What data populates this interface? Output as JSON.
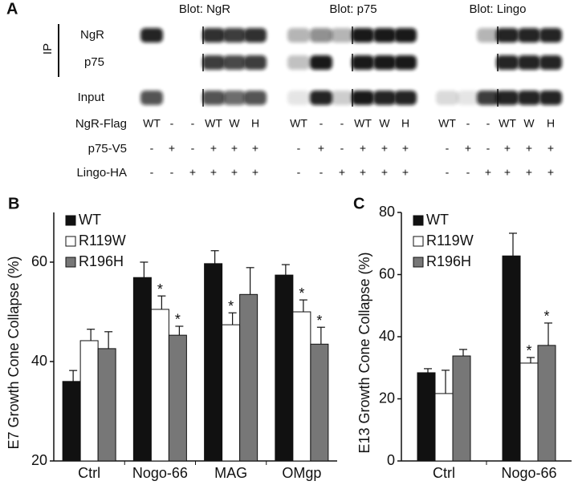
{
  "panel_a": {
    "label": "A",
    "blot_titles": [
      "Blot: NgR",
      "Blot: p75",
      "Blot: Lingo"
    ],
    "ip_label": "IP",
    "row_labels": [
      "NgR",
      "p75",
      "Input"
    ],
    "condition_labels": [
      "NgR-Flag",
      "p75-V5",
      "Lingo-HA"
    ],
    "lanes": [
      [
        "WT",
        "-",
        "-",
        "WT",
        "W",
        "H"
      ],
      [
        "-",
        "+",
        "-",
        "+",
        "+",
        "+"
      ],
      [
        "-",
        "-",
        "+",
        "+",
        "+",
        "+"
      ]
    ]
  },
  "chart_data": [
    {
      "type": "bar",
      "panel": "B",
      "y_label": "E7 Growth Cone Collapse (%)",
      "categories": [
        "Ctrl",
        "Nogo-66",
        "MAG",
        "OMgp"
      ],
      "series": [
        {
          "name": "WT",
          "color": "#111111",
          "values": [
            36.0,
            56.9,
            59.7,
            57.4
          ],
          "errors": [
            2.2,
            3.1,
            2.6,
            2.1
          ]
        },
        {
          "name": "R119W",
          "color": "#ffffff",
          "values": [
            44.2,
            50.5,
            47.4,
            50.0
          ],
          "errors": [
            2.3,
            2.7,
            2.4,
            2.4
          ]
        },
        {
          "name": "R196H",
          "color": "#777777",
          "values": [
            42.6,
            45.3,
            53.5,
            43.5
          ],
          "errors": [
            3.4,
            1.8,
            5.4,
            3.4
          ]
        }
      ],
      "annotations": [
        {
          "text": "*",
          "category": "Nogo-66",
          "series": "R119W"
        },
        {
          "text": "*",
          "category": "Nogo-66",
          "series": "R196H"
        },
        {
          "text": "*",
          "category": "MAG",
          "series": "R119W"
        },
        {
          "text": "*",
          "category": "OMgp",
          "series": "R119W"
        },
        {
          "text": "*",
          "category": "OMgp",
          "series": "R196H"
        }
      ],
      "ylim": [
        20,
        70
      ],
      "yticks": [
        20,
        40,
        60
      ],
      "legend": "upper left"
    },
    {
      "type": "bar",
      "panel": "C",
      "y_label": "E13 Growth Cone Collapse (%)",
      "categories": [
        "Ctrl",
        "Nogo-66"
      ],
      "series": [
        {
          "name": "WT",
          "color": "#111111",
          "values": [
            28.4,
            66.0
          ],
          "errors": [
            1.3,
            7.3
          ]
        },
        {
          "name": "R119W",
          "color": "#ffffff",
          "values": [
            21.7,
            31.5
          ],
          "errors": [
            7.5,
            1.8
          ]
        },
        {
          "name": "R196H",
          "color": "#777777",
          "values": [
            33.8,
            37.2
          ],
          "errors": [
            2.1,
            7.2
          ]
        }
      ],
      "annotations": [
        {
          "text": "*",
          "category": "Nogo-66",
          "series": "R119W"
        },
        {
          "text": "*",
          "category": "Nogo-66",
          "series": "R196H"
        }
      ],
      "ylim": [
        0,
        80
      ],
      "yticks": [
        0,
        20,
        40,
        60,
        80
      ],
      "legend": "upper left"
    }
  ]
}
